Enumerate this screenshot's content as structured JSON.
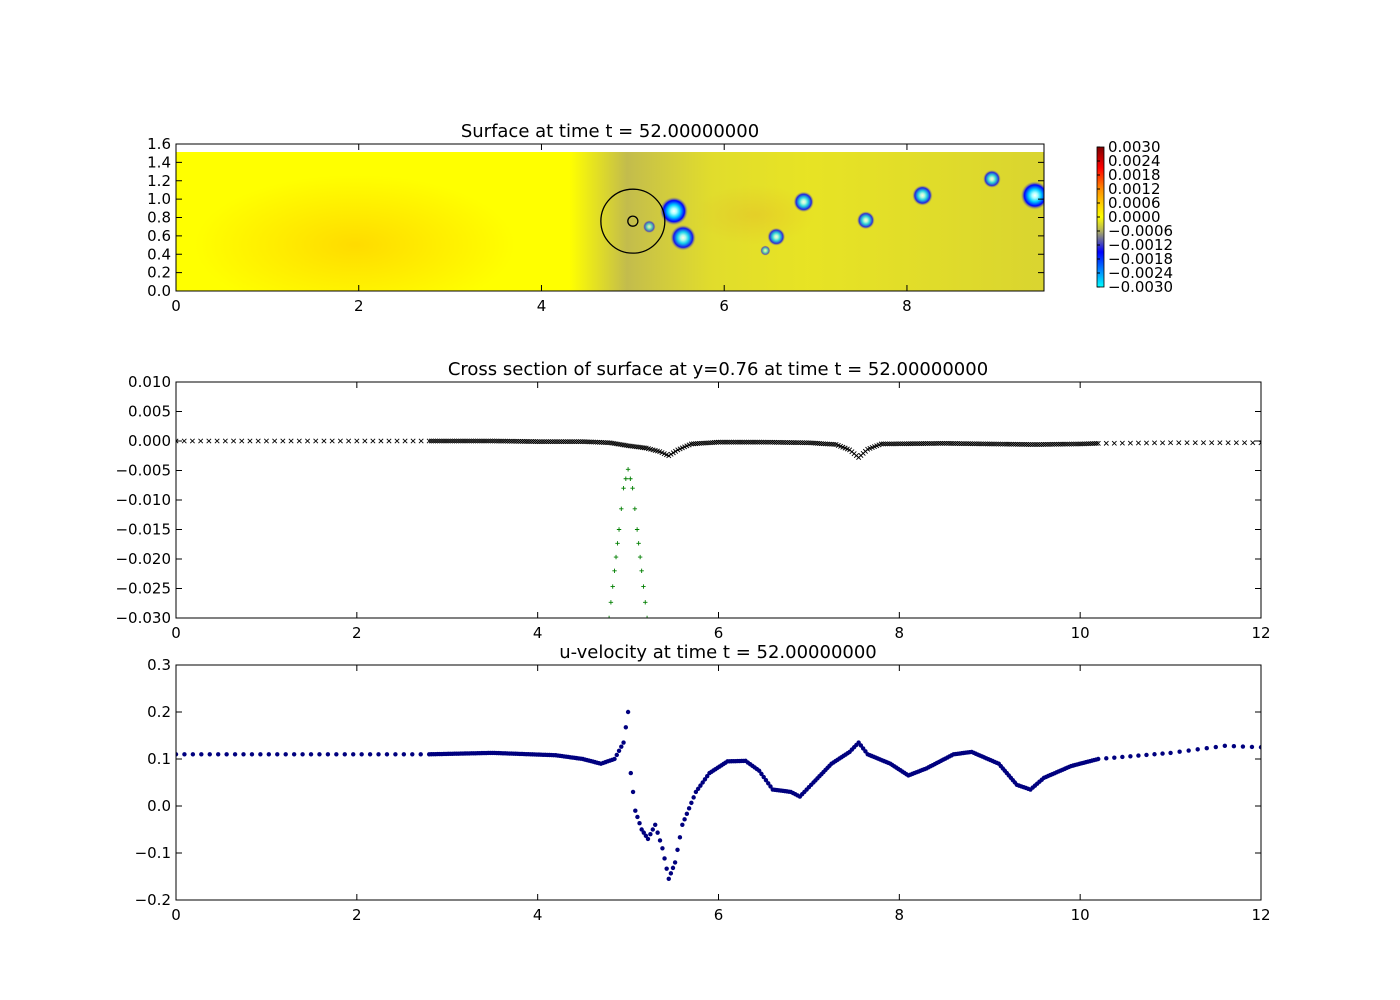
{
  "figure": {
    "charts": [
      {
        "type": "heatmap",
        "title": "Surface at time t =    52.00000000",
        "xlim": [
          0,
          9.5
        ],
        "ylim": [
          0,
          1.6
        ],
        "xticks": [
          0,
          2,
          4,
          6,
          8
        ],
        "xtick_labels": [
          "0",
          "2",
          "4",
          "6",
          "8"
        ],
        "yticks": [
          0,
          0.2,
          0.4,
          0.6,
          0.8,
          1.0,
          1.2,
          1.4,
          1.6
        ],
        "ytick_labels": [
          "0.0",
          "0.2",
          "0.4",
          "0.6",
          "0.8",
          "1.0",
          "1.2",
          "1.4",
          "1.6"
        ],
        "colorbar": {
          "range": [
            -0.003,
            0.003
          ],
          "tick_labels": [
            "0.0030",
            "0.0024",
            "0.0018",
            "0.0012",
            "0.0006",
            "0.0000",
            "−0.0006",
            "−0.0012",
            "−0.0018",
            "−0.0024",
            "−0.0030"
          ],
          "colors_top_to_bottom": [
            "#7f0000",
            "#ff0000",
            "#ff8c00",
            "#ffd700",
            "#ffff00",
            "#b0b060",
            "#0000ff",
            "#00ffff"
          ]
        },
        "dips": [
          {
            "x": 5.45,
            "y": 0.87,
            "r": 0.11,
            "depth": 1.0
          },
          {
            "x": 5.55,
            "y": 0.58,
            "r": 0.1,
            "depth": 0.9
          },
          {
            "x": 5.18,
            "y": 0.7,
            "r": 0.05,
            "depth": 0.6
          },
          {
            "x": 6.57,
            "y": 0.59,
            "r": 0.07,
            "depth": 0.8
          },
          {
            "x": 6.45,
            "y": 0.44,
            "r": 0.04,
            "depth": 0.6
          },
          {
            "x": 6.87,
            "y": 0.97,
            "r": 0.08,
            "depth": 0.85
          },
          {
            "x": 7.55,
            "y": 0.77,
            "r": 0.07,
            "depth": 0.8
          },
          {
            "x": 8.17,
            "y": 1.04,
            "r": 0.08,
            "depth": 0.85
          },
          {
            "x": 8.93,
            "y": 1.22,
            "r": 0.07,
            "depth": 0.8
          },
          {
            "x": 9.4,
            "y": 1.04,
            "r": 0.11,
            "depth": 1.0
          }
        ],
        "circle": {
          "cx": 5.0,
          "cy": 0.76,
          "r": 0.35
        },
        "small_circle": {
          "cx": 5.0,
          "cy": 0.76,
          "r": 0.055
        }
      },
      {
        "type": "scatter",
        "title": "Cross section of surface at y=0.76 at time t =    52.00000000",
        "xlim": [
          0,
          12
        ],
        "ylim": [
          -0.03,
          0.01
        ],
        "xticks": [
          0,
          2,
          4,
          6,
          8,
          10,
          12
        ],
        "xtick_labels": [
          "0",
          "2",
          "4",
          "6",
          "8",
          "10",
          "12"
        ],
        "yticks": [
          0.01,
          0.005,
          0,
          -0.005,
          -0.01,
          -0.015,
          -0.02,
          -0.025,
          -0.03
        ],
        "ytick_labels": [
          "0.010",
          "0.005",
          "0.000",
          "−0.005",
          "−0.010",
          "−0.015",
          "−0.020",
          "−0.025",
          "−0.030"
        ],
        "series": [
          {
            "marker": "x",
            "color": "#000000",
            "points": [
              [
                0,
                0.0
              ],
              [
                1,
                0.0
              ],
              [
                2,
                0.0
              ],
              [
                2.8,
                0.0
              ],
              [
                3.5,
                0.0
              ],
              [
                4.0,
                -0.0001
              ],
              [
                4.5,
                -0.0001
              ],
              [
                4.8,
                -0.0003
              ],
              [
                5.0,
                -0.0008
              ],
              [
                5.2,
                -0.0012
              ],
              [
                5.35,
                -0.0018
              ],
              [
                5.45,
                -0.0025
              ],
              [
                5.55,
                -0.0015
              ],
              [
                5.7,
                -0.0005
              ],
              [
                6.0,
                -0.0002
              ],
              [
                6.5,
                -0.0002
              ],
              [
                7.0,
                -0.0003
              ],
              [
                7.3,
                -0.0006
              ],
              [
                7.45,
                -0.0015
              ],
              [
                7.55,
                -0.0028
              ],
              [
                7.65,
                -0.0014
              ],
              [
                7.8,
                -0.0005
              ],
              [
                8.5,
                -0.0004
              ],
              [
                9.0,
                -0.0005
              ],
              [
                9.5,
                -0.0006
              ],
              [
                10.0,
                -0.0005
              ],
              [
                10.2,
                -0.0004
              ],
              [
                11.0,
                -0.0003
              ],
              [
                12.0,
                -0.0003
              ]
            ]
          },
          {
            "marker": "+",
            "color": "#007f00",
            "points": [
              [
                4.79,
                -0.03
              ],
              [
                4.85,
                -0.022
              ],
              [
                4.9,
                -0.015
              ],
              [
                4.95,
                -0.008
              ],
              [
                5.0,
                -0.0048
              ],
              [
                5.05,
                -0.008
              ],
              [
                5.1,
                -0.015
              ],
              [
                5.15,
                -0.022
              ],
              [
                5.21,
                -0.03
              ]
            ]
          }
        ]
      },
      {
        "type": "scatter",
        "title": "u-velocity at time t =    52.00000000",
        "xlim": [
          0,
          12
        ],
        "ylim": [
          -0.2,
          0.3
        ],
        "xticks": [
          0,
          2,
          4,
          6,
          8,
          10,
          12
        ],
        "xtick_labels": [
          "0",
          "2",
          "4",
          "6",
          "8",
          "10",
          "12"
        ],
        "yticks": [
          0.3,
          0.2,
          0.1,
          0,
          -0.1,
          -0.2
        ],
        "ytick_labels": [
          "0.3",
          "0.2",
          "0.1",
          "0.0",
          "−0.1",
          "−0.2"
        ],
        "series": [
          {
            "marker": ".",
            "color": "#00007f",
            "points": [
              [
                0,
                0.11
              ],
              [
                2.8,
                0.11
              ],
              [
                3.5,
                0.113
              ],
              [
                4.2,
                0.108
              ],
              [
                4.5,
                0.1
              ],
              [
                4.7,
                0.09
              ],
              [
                4.85,
                0.1
              ],
              [
                4.95,
                0.135
              ],
              [
                5.0,
                0.2
              ],
              [
                5.03,
                0.07
              ],
              [
                5.08,
                -0.01
              ],
              [
                5.15,
                -0.05
              ],
              [
                5.22,
                -0.07
              ],
              [
                5.3,
                -0.04
              ],
              [
                5.38,
                -0.09
              ],
              [
                5.45,
                -0.155
              ],
              [
                5.52,
                -0.12
              ],
              [
                5.6,
                -0.04
              ],
              [
                5.75,
                0.03
              ],
              [
                5.9,
                0.07
              ],
              [
                6.1,
                0.095
              ],
              [
                6.3,
                0.096
              ],
              [
                6.45,
                0.075
              ],
              [
                6.6,
                0.035
              ],
              [
                6.8,
                0.03
              ],
              [
                6.9,
                0.02
              ],
              [
                7.05,
                0.05
              ],
              [
                7.25,
                0.09
              ],
              [
                7.45,
                0.115
              ],
              [
                7.55,
                0.135
              ],
              [
                7.65,
                0.11
              ],
              [
                7.9,
                0.09
              ],
              [
                8.1,
                0.065
              ],
              [
                8.3,
                0.08
              ],
              [
                8.6,
                0.11
              ],
              [
                8.8,
                0.115
              ],
              [
                9.1,
                0.09
              ],
              [
                9.3,
                0.045
              ],
              [
                9.45,
                0.035
              ],
              [
                9.6,
                0.06
              ],
              [
                9.9,
                0.085
              ],
              [
                10.2,
                0.1
              ],
              [
                11.0,
                0.113
              ],
              [
                11.6,
                0.128
              ],
              [
                12.0,
                0.125
              ]
            ]
          }
        ]
      }
    ]
  }
}
